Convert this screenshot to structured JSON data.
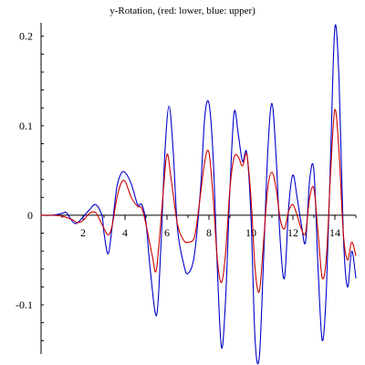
{
  "chart_data": {
    "type": "line",
    "title": "y-Rotation, (red: lower, blue: upper)",
    "xlabel": "",
    "ylabel": "",
    "xlim": [
      0,
      15
    ],
    "ylim": [
      -0.155,
      0.215
    ],
    "grid": false,
    "legend": "none",
    "x_ticks": [
      2,
      4,
      6,
      8,
      10,
      12,
      14
    ],
    "x_tick_labels": [
      "2",
      "4",
      "6",
      "8",
      "10",
      "12",
      "14"
    ],
    "y_ticks": [
      -0.1,
      0,
      0.1,
      0.2
    ],
    "y_tick_labels": [
      "-0.1",
      "0",
      "0.1",
      "0.2"
    ],
    "series": [
      {
        "color": "#0000cc",
        "x": [
          0,
          0.5,
          1.0,
          1.2,
          1.5,
          1.7,
          2.0,
          2.3,
          2.6,
          2.9,
          3.0,
          3.2,
          3.4,
          3.6,
          3.8,
          4.0,
          4.3,
          4.6,
          4.8,
          5.0,
          5.2,
          5.5,
          5.7,
          5.9,
          6.1,
          6.3,
          6.5,
          6.8,
          7.0,
          7.3,
          7.6,
          7.8,
          8.0,
          8.2,
          8.4,
          8.6,
          8.8,
          9.0,
          9.2,
          9.4,
          9.6,
          9.8,
          10.0,
          10.2,
          10.4,
          10.6,
          10.8,
          11.0,
          11.2,
          11.4,
          11.6,
          11.8,
          12.0,
          12.2,
          12.4,
          12.6,
          12.8,
          13.0,
          13.2,
          13.4,
          13.6,
          13.8,
          14.0,
          14.2,
          14.4,
          14.6,
          14.8,
          15.0
        ],
        "values": [
          0,
          0,
          0.002,
          0.003,
          -0.007,
          -0.009,
          -0.002,
          0.006,
          0.012,
          0.0,
          -0.02,
          -0.043,
          -0.01,
          0.03,
          0.046,
          0.048,
          0.035,
          0.012,
          0.012,
          -0.008,
          -0.06,
          -0.112,
          -0.04,
          0.07,
          0.122,
          0.07,
          -0.015,
          -0.055,
          -0.065,
          -0.045,
          0.03,
          0.11,
          0.125,
          0.065,
          -0.06,
          -0.148,
          -0.09,
          0.03,
          0.115,
          0.09,
          0.06,
          0.07,
          0.0,
          -0.14,
          -0.158,
          -0.05,
          0.07,
          0.125,
          0.065,
          -0.03,
          -0.07,
          0.01,
          0.045,
          0.02,
          -0.01,
          -0.03,
          0.04,
          0.05,
          -0.06,
          -0.14,
          -0.08,
          0.07,
          0.21,
          0.15,
          -0.02,
          -0.08,
          -0.04,
          -0.07
        ]
      },
      {
        "color": "#cc0000",
        "x": [
          0,
          0.5,
          1.0,
          1.5,
          1.7,
          2.0,
          2.3,
          2.6,
          2.9,
          3.2,
          3.4,
          3.6,
          3.8,
          4.0,
          4.3,
          4.6,
          4.8,
          5.0,
          5.3,
          5.5,
          5.8,
          6.0,
          6.2,
          6.5,
          6.8,
          7.0,
          7.3,
          7.5,
          7.8,
          8.0,
          8.2,
          8.4,
          8.6,
          8.8,
          9.0,
          9.2,
          9.4,
          9.6,
          9.8,
          10.0,
          10.2,
          10.4,
          10.6,
          10.8,
          11.0,
          11.2,
          11.4,
          11.6,
          11.8,
          12.0,
          12.2,
          12.4,
          12.6,
          12.8,
          13.0,
          13.2,
          13.4,
          13.6,
          13.8,
          14.0,
          14.2,
          14.4,
          14.6,
          14.8,
          15.0
        ],
        "values": [
          0,
          0,
          -0.001,
          -0.005,
          -0.008,
          -0.006,
          0.002,
          0.003,
          -0.01,
          -0.022,
          -0.01,
          0.018,
          0.035,
          0.038,
          0.02,
          0.01,
          0.008,
          -0.01,
          -0.045,
          -0.06,
          0.02,
          0.068,
          0.04,
          -0.01,
          -0.028,
          -0.03,
          -0.025,
          0.005,
          0.06,
          0.07,
          0.02,
          -0.05,
          -0.075,
          -0.04,
          0.03,
          0.065,
          0.065,
          0.055,
          0.068,
          0.02,
          -0.06,
          -0.085,
          -0.03,
          0.03,
          0.048,
          0.03,
          -0.005,
          -0.015,
          0.005,
          0.012,
          0.0,
          -0.015,
          -0.02,
          0.02,
          0.03,
          -0.02,
          -0.07,
          -0.045,
          0.05,
          0.118,
          0.07,
          -0.02,
          -0.05,
          -0.03,
          -0.045
        ]
      }
    ]
  }
}
